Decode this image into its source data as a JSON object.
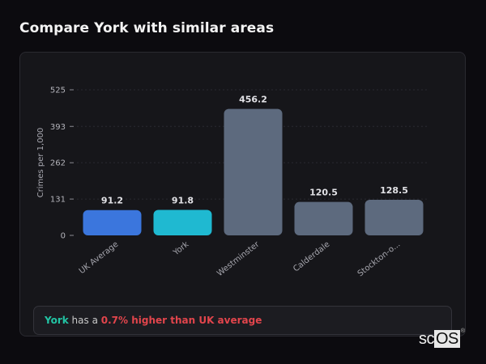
{
  "header": {
    "title": "Compare York with similar areas"
  },
  "chart_data": {
    "type": "bar",
    "title": "Compare York with similar areas",
    "xlabel": "",
    "ylabel": "Crimes per 1,000",
    "ylim": [
      0,
      525
    ],
    "yticks": [
      0,
      131,
      262,
      393,
      525
    ],
    "grid": true,
    "categories": [
      "UK Average",
      "York",
      "Westminster",
      "Calderdale",
      "Stockton-o..."
    ],
    "values": [
      91.2,
      91.8,
      456.2,
      120.5,
      128.5
    ],
    "value_labels": [
      "91.2",
      "91.8",
      "456.2",
      "120.5",
      "128.5"
    ],
    "colors": [
      "#3b76dd",
      "#1fb9d1",
      "#5d6a7e",
      "#5d6a7e",
      "#5d6a7e"
    ]
  },
  "summary": {
    "place": "York",
    "middle": " has a ",
    "difference": "0.7% higher than UK average"
  },
  "logo": {
    "prefix": "sc",
    "boxed": "OS",
    "mark": "®"
  },
  "colors": {
    "accent_green": "#22c4a4",
    "accent_red": "#e2454c"
  }
}
